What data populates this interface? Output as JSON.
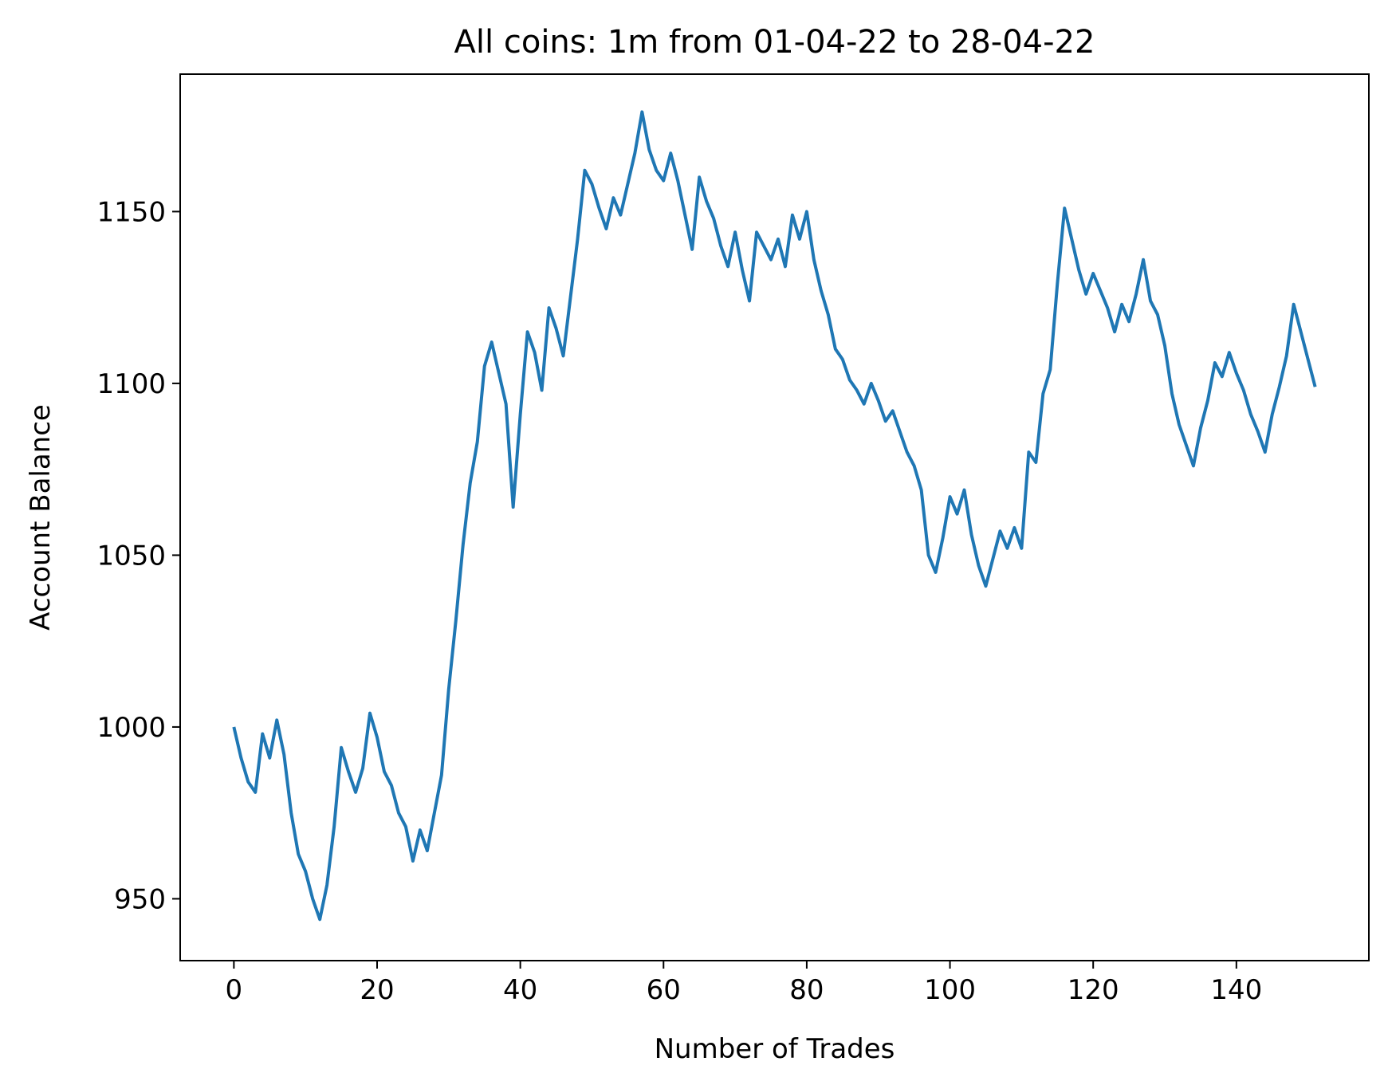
{
  "chart_data": {
    "type": "line",
    "title": "All coins: 1m from 01-04-22 to 28-04-22",
    "xlabel": "Number of Trades",
    "ylabel": "Account Balance",
    "xlim": [
      -7.5,
      158.5
    ],
    "ylim": [
      932,
      1190
    ],
    "xticks": [
      0,
      20,
      40,
      60,
      80,
      100,
      120,
      140
    ],
    "yticks": [
      950,
      1000,
      1050,
      1100,
      1150
    ],
    "grid": false,
    "series": [
      {
        "color": "#1f77b4",
        "x": [
          0,
          1,
          2,
          3,
          4,
          5,
          6,
          7,
          8,
          9,
          10,
          11,
          12,
          13,
          14,
          15,
          16,
          17,
          18,
          19,
          20,
          21,
          22,
          23,
          24,
          25,
          26,
          27,
          28,
          29,
          30,
          31,
          32,
          33,
          34,
          35,
          36,
          37,
          38,
          39,
          40,
          41,
          42,
          43,
          44,
          45,
          46,
          47,
          48,
          49,
          50,
          51,
          52,
          53,
          54,
          55,
          56,
          57,
          58,
          59,
          60,
          61,
          62,
          63,
          64,
          65,
          66,
          67,
          68,
          69,
          70,
          71,
          72,
          73,
          74,
          75,
          76,
          77,
          78,
          79,
          80,
          81,
          82,
          83,
          84,
          85,
          86,
          87,
          88,
          89,
          90,
          91,
          92,
          93,
          94,
          95,
          96,
          97,
          98,
          99,
          100,
          101,
          102,
          103,
          104,
          105,
          106,
          107,
          108,
          109,
          110,
          111,
          112,
          113,
          114,
          115,
          116,
          117,
          118,
          119,
          120,
          121,
          122,
          123,
          124,
          125,
          126,
          127,
          128,
          129,
          130,
          131,
          132,
          133,
          134,
          135,
          136,
          137,
          138,
          139,
          140,
          141,
          142,
          143,
          144,
          145,
          146,
          147,
          148,
          149,
          150,
          151
        ],
        "y": [
          1000,
          991,
          984,
          981,
          998,
          991,
          1002,
          992,
          975,
          963,
          958,
          950,
          944,
          954,
          971,
          994,
          987,
          981,
          988,
          1004,
          997,
          987,
          983,
          975,
          971,
          961,
          970,
          964,
          975,
          986,
          1011,
          1031,
          1053,
          1071,
          1083,
          1105,
          1112,
          1103,
          1094,
          1064,
          1091,
          1115,
          1109,
          1098,
          1122,
          1116,
          1108,
          1125,
          1142,
          1162,
          1158,
          1151,
          1145,
          1154,
          1149,
          1158,
          1167,
          1179,
          1168,
          1162,
          1159,
          1167,
          1159,
          1149,
          1139,
          1160,
          1153,
          1148,
          1140,
          1134,
          1144,
          1133,
          1124,
          1144,
          1140,
          1136,
          1142,
          1134,
          1149,
          1142,
          1150,
          1136,
          1127,
          1120,
          1110,
          1107,
          1101,
          1098,
          1094,
          1100,
          1095,
          1089,
          1092,
          1086,
          1080,
          1076,
          1069,
          1050,
          1045,
          1055,
          1067,
          1062,
          1069,
          1056,
          1047,
          1041,
          1049,
          1057,
          1052,
          1058,
          1052,
          1080,
          1077,
          1097,
          1104,
          1129,
          1151,
          1142,
          1133,
          1126,
          1132,
          1127,
          1122,
          1115,
          1123,
          1118,
          1126,
          1136,
          1124,
          1120,
          1111,
          1097,
          1088,
          1082,
          1076,
          1087,
          1095,
          1106,
          1102,
          1109,
          1103,
          1098,
          1091,
          1086,
          1080,
          1091,
          1099,
          1108,
          1123,
          1115,
          1107,
          1099
        ]
      }
    ]
  }
}
